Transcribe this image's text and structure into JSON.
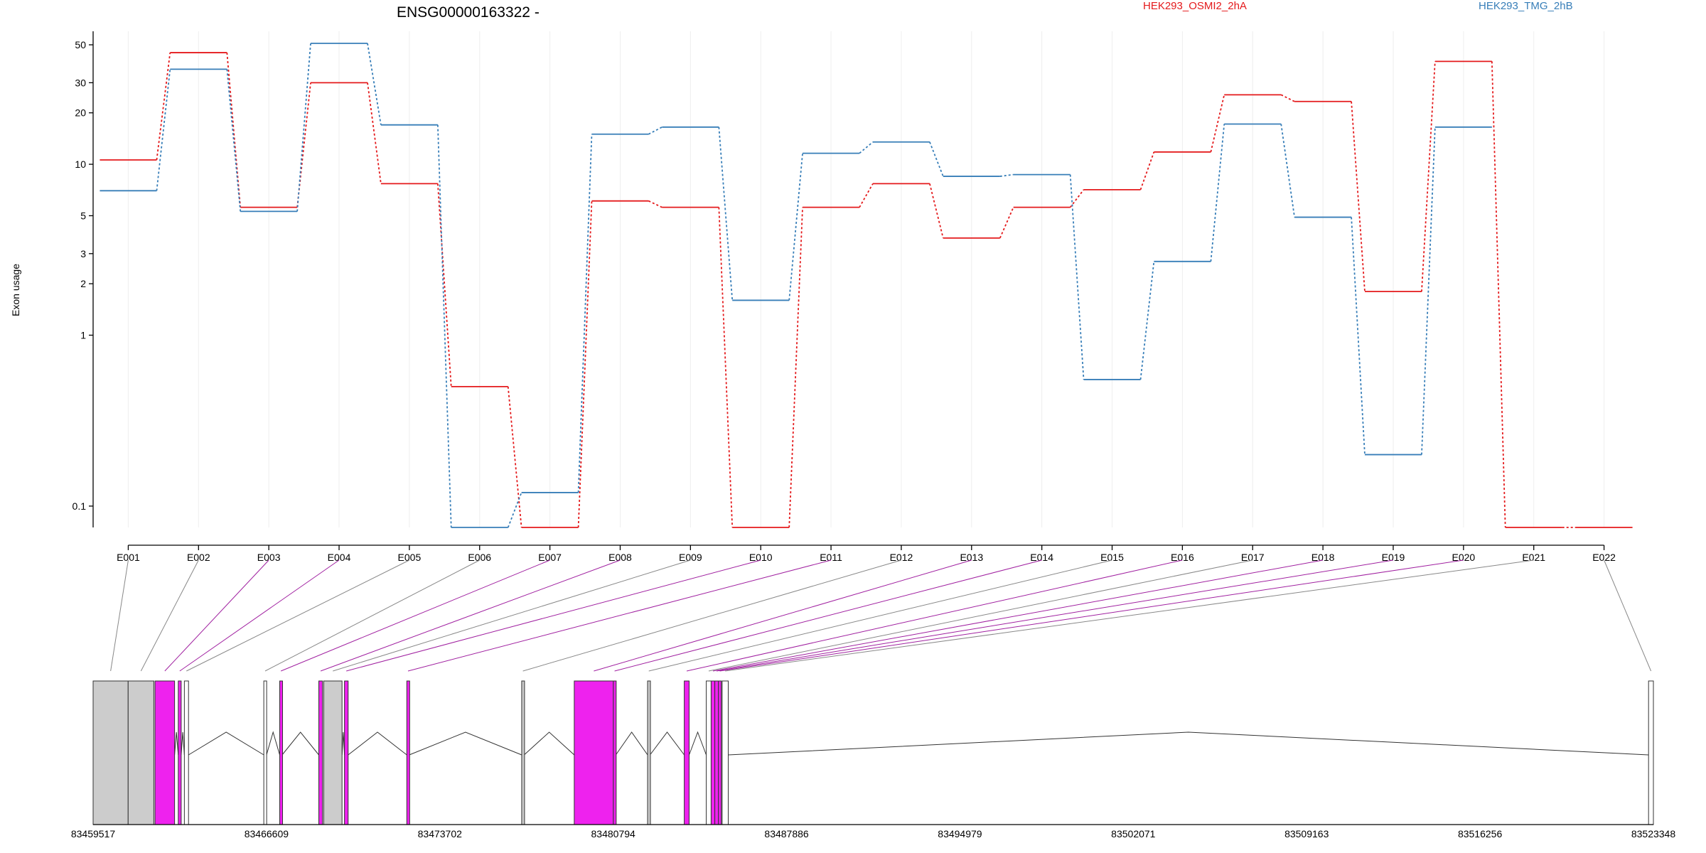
{
  "chart_data": {
    "type": "line",
    "title": "ENSG00000163322 -",
    "ylabel": "Exon usage",
    "yscale": "log",
    "yticks": [
      0.1,
      1,
      2,
      3,
      5,
      10,
      20,
      30,
      50
    ],
    "ytick_labels": [
      "0.1",
      "1",
      "2",
      "3",
      "5",
      "10",
      "20",
      "30",
      "50"
    ],
    "categories": [
      "E001",
      "E002",
      "E003",
      "E004",
      "E005",
      "E006",
      "E007",
      "E008",
      "E009",
      "E010",
      "E011",
      "E012",
      "E013",
      "E014",
      "E015",
      "E016",
      "E017",
      "E018",
      "E019",
      "E020",
      "E021",
      "E022"
    ],
    "legend_position": "top",
    "series": [
      {
        "name": "HEK293_OSMI2_2hA",
        "color": "#e41a1c",
        "values": [
          10.6,
          45,
          5.6,
          30,
          7.7,
          0.5,
          0,
          6.1,
          5.6,
          0,
          5.6,
          7.7,
          3.7,
          5.6,
          7.1,
          11.8,
          25.5,
          23.3,
          1.8,
          40,
          0,
          0
        ]
      },
      {
        "name": "HEK293_TMG_2hB",
        "color": "#377eb8",
        "values": [
          7,
          36,
          5.3,
          51,
          17,
          0,
          0.12,
          15,
          16.5,
          1.6,
          11.6,
          13.5,
          8.5,
          8.7,
          0.55,
          2.7,
          17.2,
          4.9,
          0.2,
          16.5,
          null,
          null
        ]
      }
    ],
    "genomic_axis": {
      "tick_labels": [
        "83459517",
        "83466609",
        "83473702",
        "83480794",
        "83487886",
        "83494979",
        "83502071",
        "83509163",
        "83516256",
        "83523348"
      ],
      "start": 83459517,
      "end": 83523348
    },
    "exons": [
      {
        "id": "E001",
        "start": 83459517,
        "end": 83460950,
        "color": "#cccccc"
      },
      {
        "id": "E002",
        "start": 83460950,
        "end": 83462000,
        "color": "#cccccc"
      },
      {
        "id": "E003",
        "start": 83462050,
        "end": 83462850,
        "color": "#ee22ee"
      },
      {
        "id": "E004",
        "start": 83463000,
        "end": 83463120,
        "color": "#ee22ee"
      },
      {
        "id": "E005",
        "start": 83463250,
        "end": 83463420,
        "color": "#ffffff"
      },
      {
        "id": "E006",
        "start": 83466500,
        "end": 83466610,
        "color": "#ffffff"
      },
      {
        "id": "E007",
        "start": 83467150,
        "end": 83467250,
        "color": "#ee22ee"
      },
      {
        "id": "E008",
        "start": 83468750,
        "end": 83468900,
        "color": "#ee22ee"
      },
      {
        "id": "E009",
        "start": 83468950,
        "end": 83469700,
        "color": "#cccccc"
      },
      {
        "id": "E010",
        "start": 83469800,
        "end": 83469950,
        "color": "#ee22ee"
      },
      {
        "id": "E011",
        "start": 83472350,
        "end": 83472450,
        "color": "#ee22ee"
      },
      {
        "id": "E012",
        "start": 83477050,
        "end": 83477150,
        "color": "#cccccc"
      },
      {
        "id": "E013",
        "start": 83479200,
        "end": 83480800,
        "color": "#ee22ee"
      },
      {
        "id": "E014",
        "start": 83480800,
        "end": 83480900,
        "color": "#ee22ee"
      },
      {
        "id": "E015",
        "start": 83482200,
        "end": 83482300,
        "color": "#cccccc"
      },
      {
        "id": "E016",
        "start": 83483700,
        "end": 83483900,
        "color": "#ee22ee"
      },
      {
        "id": "E017",
        "start": 83484600,
        "end": 83484800,
        "color": "#ffffff"
      },
      {
        "id": "E018",
        "start": 83484800,
        "end": 83484950,
        "color": "#ee22ee"
      },
      {
        "id": "E019",
        "start": 83484950,
        "end": 83485100,
        "color": "#ee22ee"
      },
      {
        "id": "E020",
        "start": 83485100,
        "end": 83485200,
        "color": "#ee22ee"
      },
      {
        "id": "E021",
        "start": 83485250,
        "end": 83485500,
        "color": "#ffffff"
      },
      {
        "id": "E022",
        "start": 83523150,
        "end": 83523348,
        "color": "#ffffff"
      }
    ],
    "grid": true
  }
}
